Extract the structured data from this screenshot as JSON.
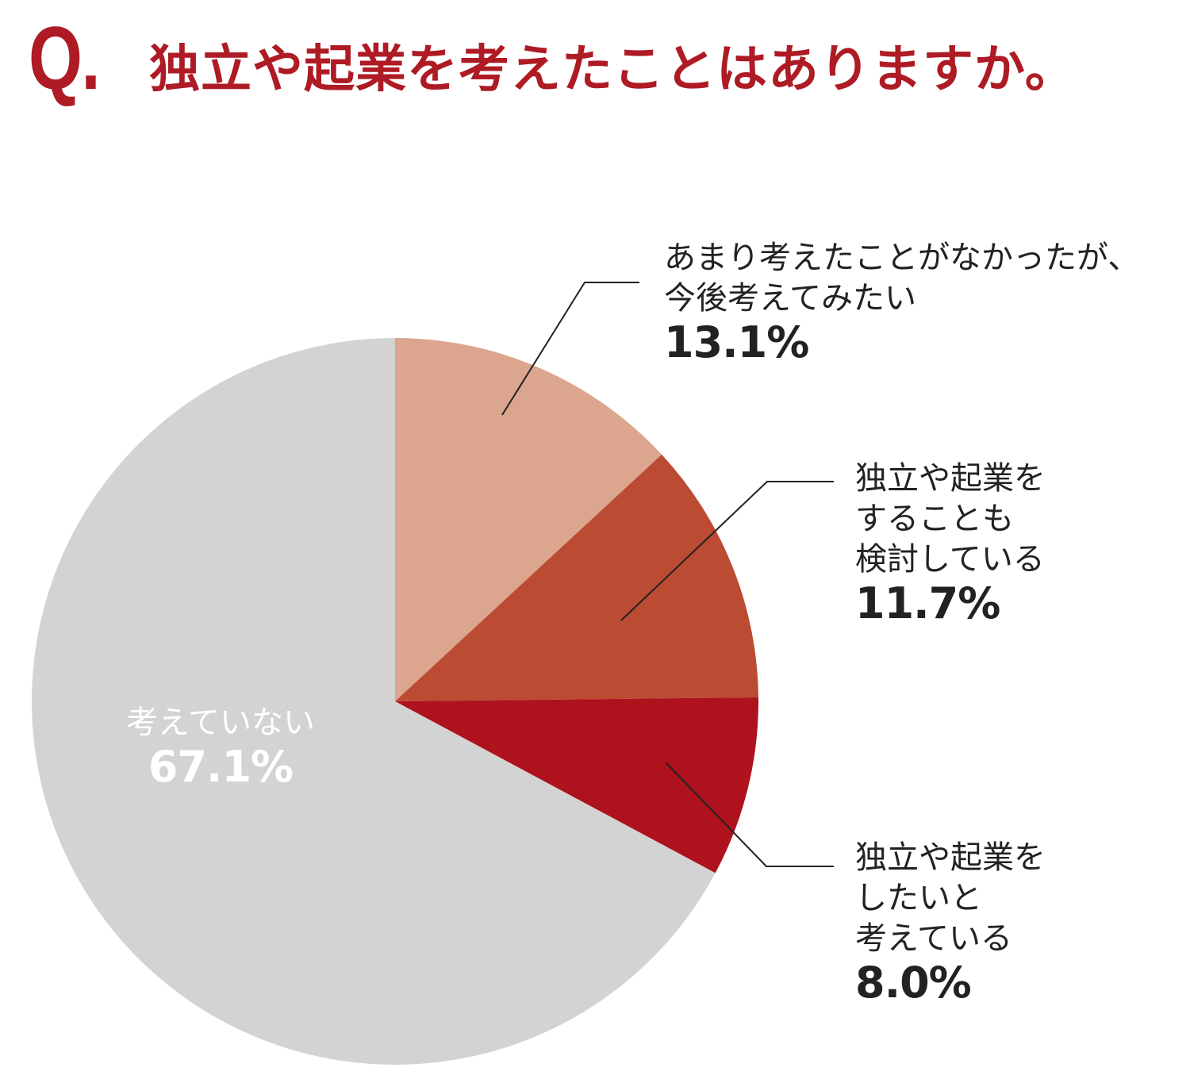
{
  "header": {
    "q_mark": "Q.",
    "question": "独立や起業を考えたことはありますか。"
  },
  "colors": {
    "title": "#AE1B24",
    "text": "#222222",
    "leader_line": "#222222"
  },
  "chart_data": {
    "type": "pie",
    "title": "独立や起業を考えたことはありますか。",
    "start": "12 o'clock, clockwise",
    "slices": [
      {
        "label_lines": [
          "あまり考えたことがなかったが、",
          "今後考えてみたい"
        ],
        "value": 13.1,
        "value_label": "13.1%",
        "color": "#DCA58E",
        "label_position": "outside-right"
      },
      {
        "label_lines": [
          "独立や起業を",
          "することも",
          "検討している"
        ],
        "value": 11.7,
        "value_label": "11.7%",
        "color": "#BC4B34",
        "label_position": "outside-right"
      },
      {
        "label_lines": [
          "独立や起業を",
          "したいと",
          "考えている"
        ],
        "value": 8.0,
        "value_label": "8.0%",
        "color": "#AE121C",
        "label_position": "outside-right"
      },
      {
        "label_lines": [
          "考えていない"
        ],
        "value": 67.1,
        "value_label": "67.1%",
        "color": "#D3D3D3",
        "label_position": "inside"
      }
    ]
  }
}
